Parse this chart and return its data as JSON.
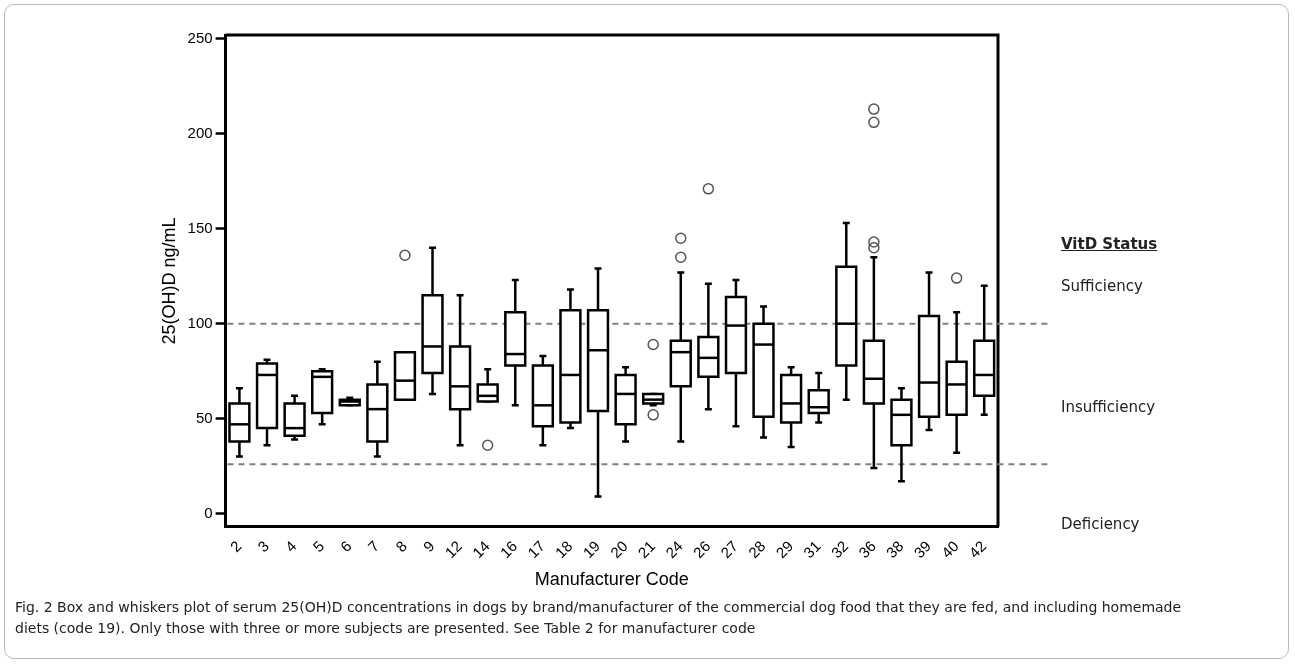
{
  "chart_data": {
    "type": "box",
    "xlabel": "Manufacturer Code",
    "ylabel": "25(OH)D ng/mL",
    "categories": [
      "2",
      "3",
      "4",
      "5",
      "6",
      "7",
      "8",
      "9",
      "12",
      "14",
      "16",
      "17",
      "18",
      "19",
      "20",
      "21",
      "24",
      "26",
      "27",
      "28",
      "29",
      "31",
      "32",
      "36",
      "38",
      "39",
      "40",
      "42"
    ],
    "boxes": [
      {
        "low": 30,
        "q1": 38,
        "median": 47,
        "q3": 58,
        "high": 66
      },
      {
        "low": 36,
        "q1": 45,
        "median": 73,
        "q3": 79,
        "high": 81
      },
      {
        "low": 39,
        "q1": 41,
        "median": 45,
        "q3": 58,
        "high": 62
      },
      {
        "low": 47,
        "q1": 53,
        "median": 72,
        "q3": 75,
        "high": 76
      },
      {
        "low": 57,
        "q1": 57,
        "median": 59,
        "q3": 60,
        "high": 61
      },
      {
        "low": 30,
        "q1": 38,
        "median": 55,
        "q3": 68,
        "high": 80
      },
      {
        "low": 60,
        "q1": 60,
        "median": 70,
        "q3": 85,
        "high": 85,
        "outliers": [
          136
        ]
      },
      {
        "low": 63,
        "q1": 74,
        "median": 88,
        "q3": 115,
        "high": 140
      },
      {
        "low": 36,
        "q1": 55,
        "median": 67,
        "q3": 88,
        "high": 115
      },
      {
        "low": 59,
        "q1": 59,
        "median": 62,
        "q3": 68,
        "high": 76,
        "outliers": [
          36
        ]
      },
      {
        "low": 57,
        "q1": 78,
        "median": 84,
        "q3": 106,
        "high": 123
      },
      {
        "low": 36,
        "q1": 46,
        "median": 57,
        "q3": 78,
        "high": 83
      },
      {
        "low": 45,
        "q1": 48,
        "median": 73,
        "q3": 107,
        "high": 118
      },
      {
        "low": 9,
        "q1": 54,
        "median": 86,
        "q3": 107,
        "high": 129
      },
      {
        "low": 38,
        "q1": 47,
        "median": 63,
        "q3": 73,
        "high": 77
      },
      {
        "low": 57,
        "q1": 58,
        "median": 60,
        "q3": 63,
        "high": 63,
        "outliers": [
          89,
          52
        ]
      },
      {
        "low": 38,
        "q1": 67,
        "median": 85,
        "q3": 91,
        "high": 127,
        "outliers": [
          135,
          145
        ]
      },
      {
        "low": 55,
        "q1": 72,
        "median": 82,
        "q3": 93,
        "high": 121,
        "outliers": [
          171
        ]
      },
      {
        "low": 46,
        "q1": 74,
        "median": 99,
        "q3": 114,
        "high": 123
      },
      {
        "low": 40,
        "q1": 51,
        "median": 89,
        "q3": 100,
        "high": 109
      },
      {
        "low": 35,
        "q1": 48,
        "median": 58,
        "q3": 73,
        "high": 77
      },
      {
        "low": 48,
        "q1": 53,
        "median": 56,
        "q3": 65,
        "high": 74
      },
      {
        "low": 60,
        "q1": 78,
        "median": 100,
        "q3": 130,
        "high": 153
      },
      {
        "low": 24,
        "q1": 58,
        "median": 71,
        "q3": 91,
        "high": 135,
        "outliers": [
          140,
          143,
          206,
          213
        ]
      },
      {
        "low": 17,
        "q1": 36,
        "median": 52,
        "q3": 60,
        "high": 66
      },
      {
        "low": 44,
        "q1": 51,
        "median": 69,
        "q3": 104,
        "high": 127
      },
      {
        "low": 32,
        "q1": 52,
        "median": 68,
        "q3": 80,
        "high": 106,
        "outliers": [
          124
        ]
      },
      {
        "low": 52,
        "q1": 62,
        "median": 73,
        "q3": 91,
        "high": 120
      }
    ],
    "ylim": [
      -7,
      252
    ],
    "yticks": [
      0,
      50,
      100,
      150,
      200,
      250
    ],
    "grid": false,
    "ref_lines": [
      {
        "axis": "y",
        "value": 100,
        "color": "#808080",
        "line_style": "dashed"
      },
      {
        "axis": "y",
        "value": 26,
        "color": "#808080",
        "line_style": "dashed"
      }
    ],
    "annotations": [
      "VitD Status",
      "Sufficiency",
      "Insufficiency",
      "Deficiency",
      "Fig. 2 Box and whiskers plot of serum 25(OH)D concentrations in dogs by brand/manufacturer of the commercial dog food that they are fed, and including homemade diets (code 19). Only those with three or more subjects are presented. See Table 2 for manufacturer code"
    ]
  }
}
